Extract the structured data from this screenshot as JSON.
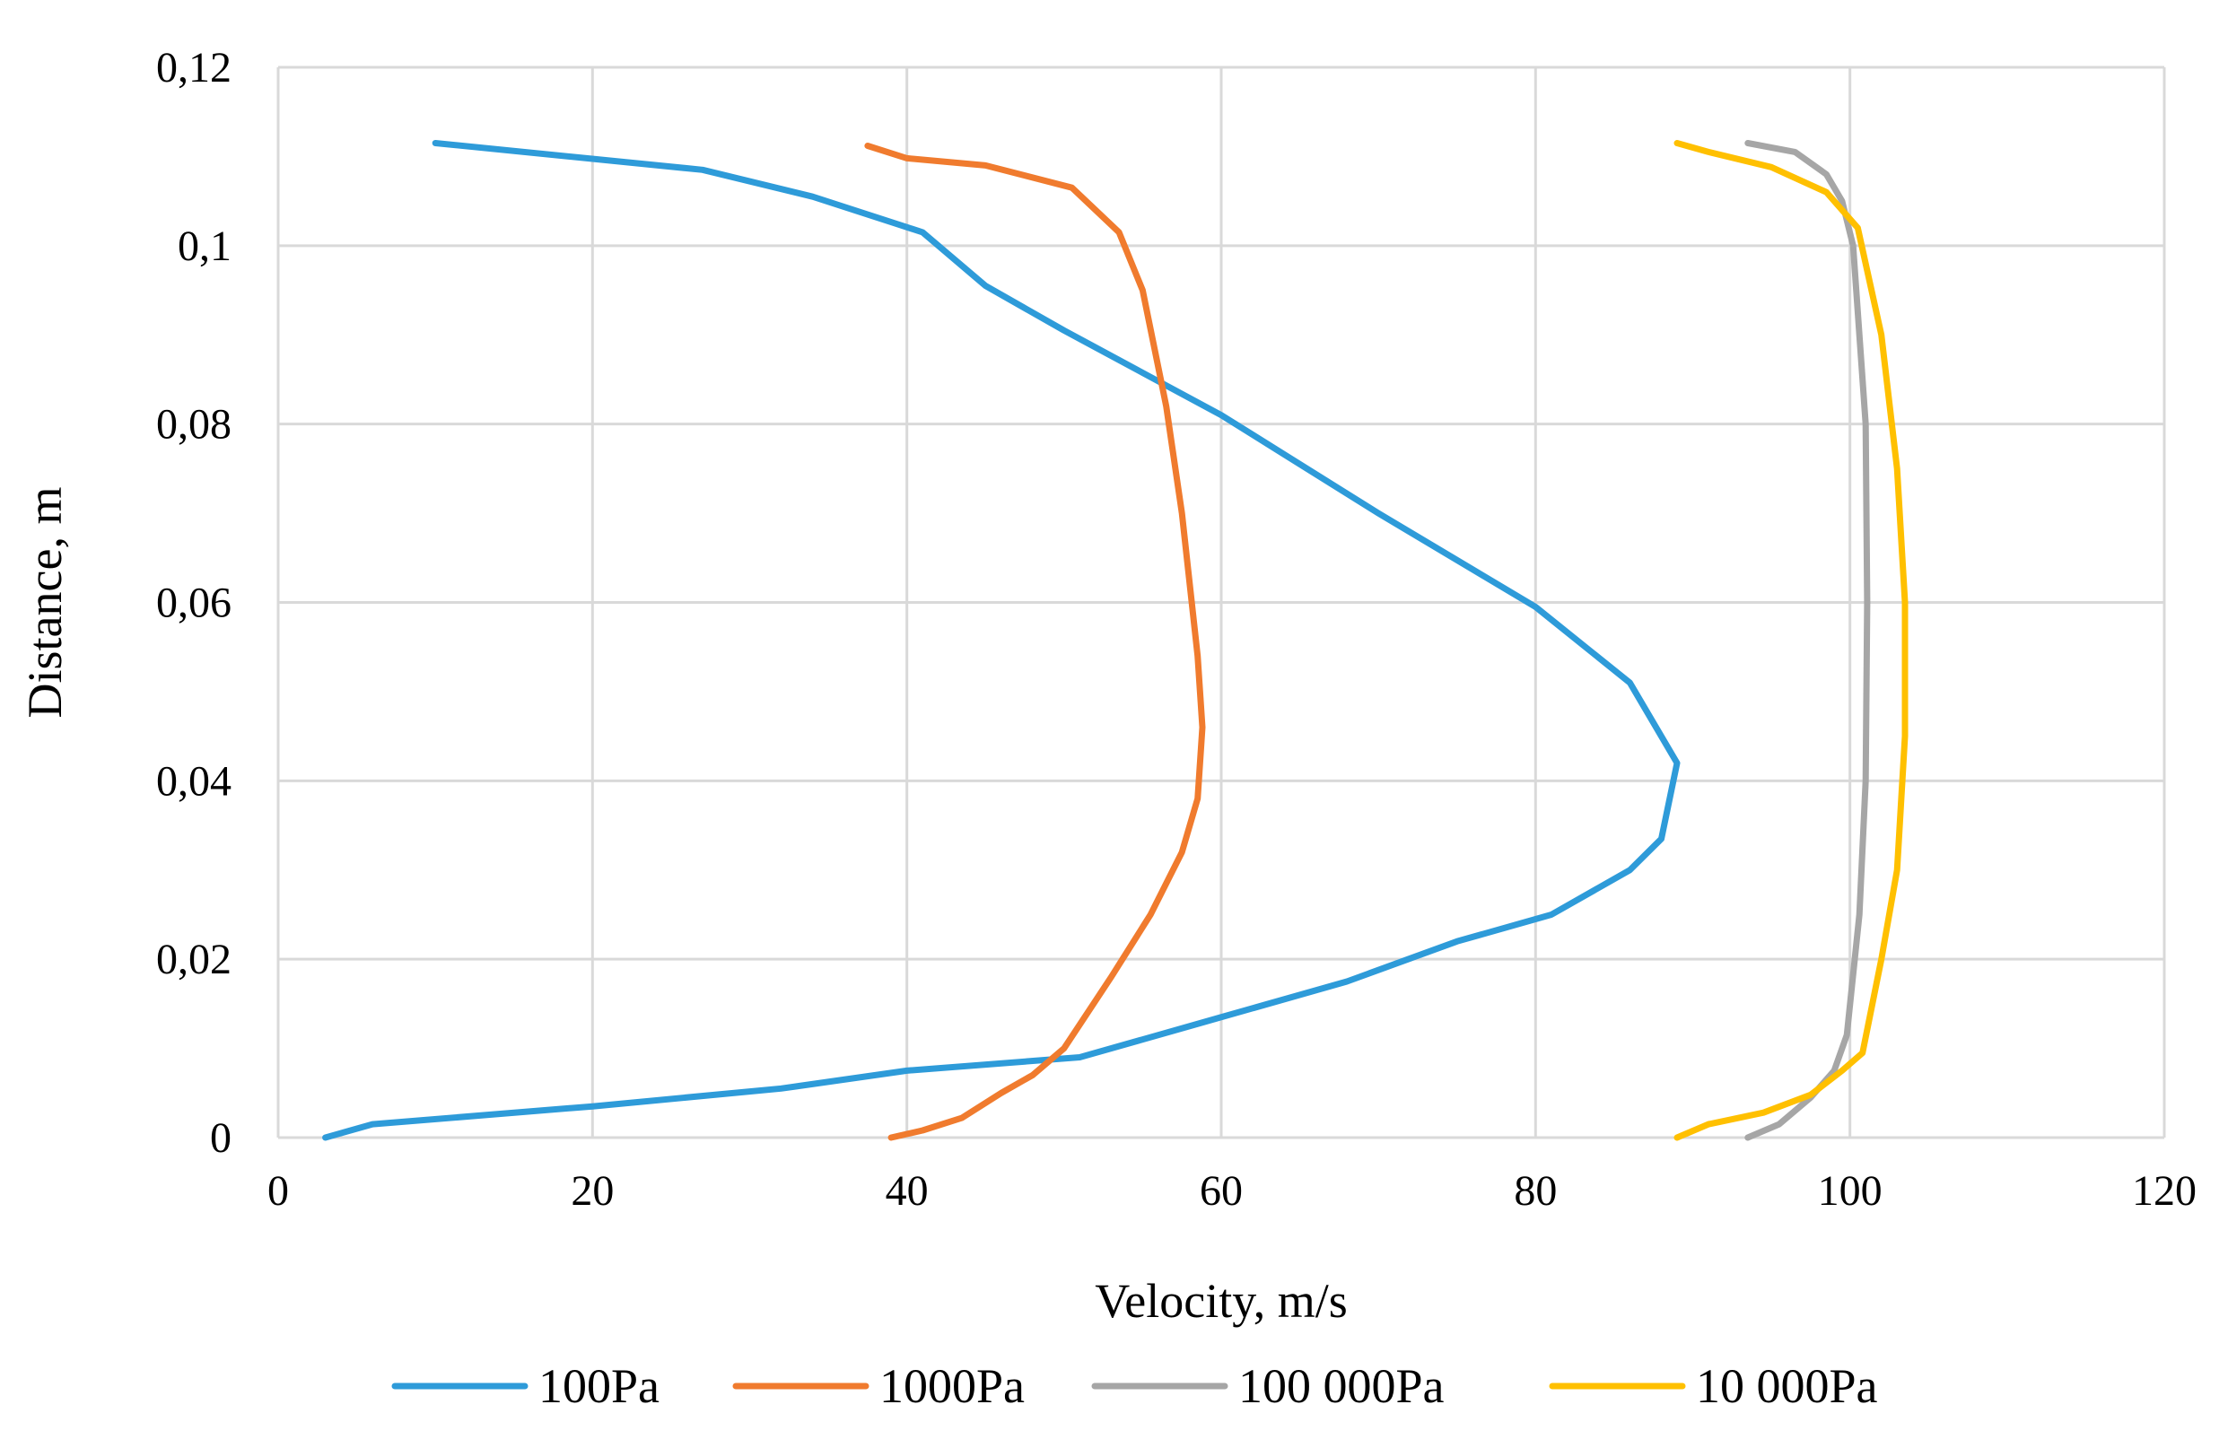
{
  "chart_data": {
    "type": "line",
    "title": "",
    "xlabel": "Velocity, m/s",
    "ylabel": "Distance, m",
    "xlim": [
      0,
      120
    ],
    "ylim": [
      0,
      0.12
    ],
    "x_ticks": [
      0,
      20,
      40,
      60,
      80,
      100,
      120
    ],
    "y_ticks": [
      0,
      0.02,
      0.04,
      0.06,
      0.08,
      0.1,
      0.12
    ],
    "x_tick_labels": [
      "0",
      "20",
      "40",
      "60",
      "80",
      "100",
      "120"
    ],
    "y_tick_labels": [
      "0",
      "0,02",
      "0,04",
      "0,06",
      "0,08",
      "0,1",
      "0,12"
    ],
    "grid": true,
    "legend_position": "bottom",
    "series": [
      {
        "name": "100Pa",
        "color": "#2e9bd9",
        "points": [
          [
            3,
            0
          ],
          [
            6,
            0.0015
          ],
          [
            20,
            0.0035
          ],
          [
            32,
            0.0055
          ],
          [
            40,
            0.0075
          ],
          [
            51,
            0.009
          ],
          [
            60,
            0.0135
          ],
          [
            68,
            0.0175
          ],
          [
            75,
            0.022
          ],
          [
            81,
            0.025
          ],
          [
            86,
            0.03
          ],
          [
            88,
            0.0335
          ],
          [
            89,
            0.042
          ],
          [
            86,
            0.051
          ],
          [
            80,
            0.0595
          ],
          [
            70,
            0.07
          ],
          [
            60,
            0.081
          ],
          [
            50,
            0.0905
          ],
          [
            45,
            0.0955
          ],
          [
            41,
            0.1015
          ],
          [
            34,
            0.1055
          ],
          [
            27,
            0.1085
          ],
          [
            10,
            0.1115
          ]
        ]
      },
      {
        "name": "1000Pa",
        "color": "#f07b2e",
        "points": [
          [
            39,
            0
          ],
          [
            41,
            0.0008
          ],
          [
            43.5,
            0.0022
          ],
          [
            46,
            0.005
          ],
          [
            48,
            0.007
          ],
          [
            50,
            0.01
          ],
          [
            53,
            0.018
          ],
          [
            55.5,
            0.025
          ],
          [
            57.5,
            0.032
          ],
          [
            58.5,
            0.038
          ],
          [
            58.8,
            0.046
          ],
          [
            58.5,
            0.054
          ],
          [
            57.5,
            0.07
          ],
          [
            56.5,
            0.082
          ],
          [
            55,
            0.095
          ],
          [
            53.5,
            0.1015
          ],
          [
            50.5,
            0.1065
          ],
          [
            45,
            0.109
          ],
          [
            40,
            0.1098
          ],
          [
            37.5,
            0.1112
          ]
        ]
      },
      {
        "name": "100 000Pa",
        "color": "#a6a6a6",
        "points": [
          [
            93.5,
            0
          ],
          [
            95.5,
            0.0015
          ],
          [
            97.5,
            0.0045
          ],
          [
            99,
            0.0075
          ],
          [
            99.8,
            0.0115
          ],
          [
            100.6,
            0.025
          ],
          [
            101,
            0.04
          ],
          [
            101.1,
            0.06
          ],
          [
            101,
            0.08
          ],
          [
            100.2,
            0.1
          ],
          [
            99.5,
            0.105
          ],
          [
            98.5,
            0.108
          ],
          [
            96.5,
            0.1105
          ],
          [
            93.5,
            0.1115
          ]
        ]
      },
      {
        "name": "10 000Pa",
        "color": "#ffc000",
        "points": [
          [
            89,
            0
          ],
          [
            91,
            0.0015
          ],
          [
            94.5,
            0.0028
          ],
          [
            97.5,
            0.0048
          ],
          [
            99.5,
            0.0075
          ],
          [
            100.8,
            0.0095
          ],
          [
            102,
            0.02
          ],
          [
            103,
            0.03
          ],
          [
            103.5,
            0.045
          ],
          [
            103.5,
            0.06
          ],
          [
            103,
            0.075
          ],
          [
            102,
            0.09
          ],
          [
            100.5,
            0.102
          ],
          [
            98.5,
            0.106
          ],
          [
            95,
            0.1088
          ],
          [
            91,
            0.1105
          ],
          [
            89,
            0.1115
          ]
        ]
      }
    ]
  }
}
